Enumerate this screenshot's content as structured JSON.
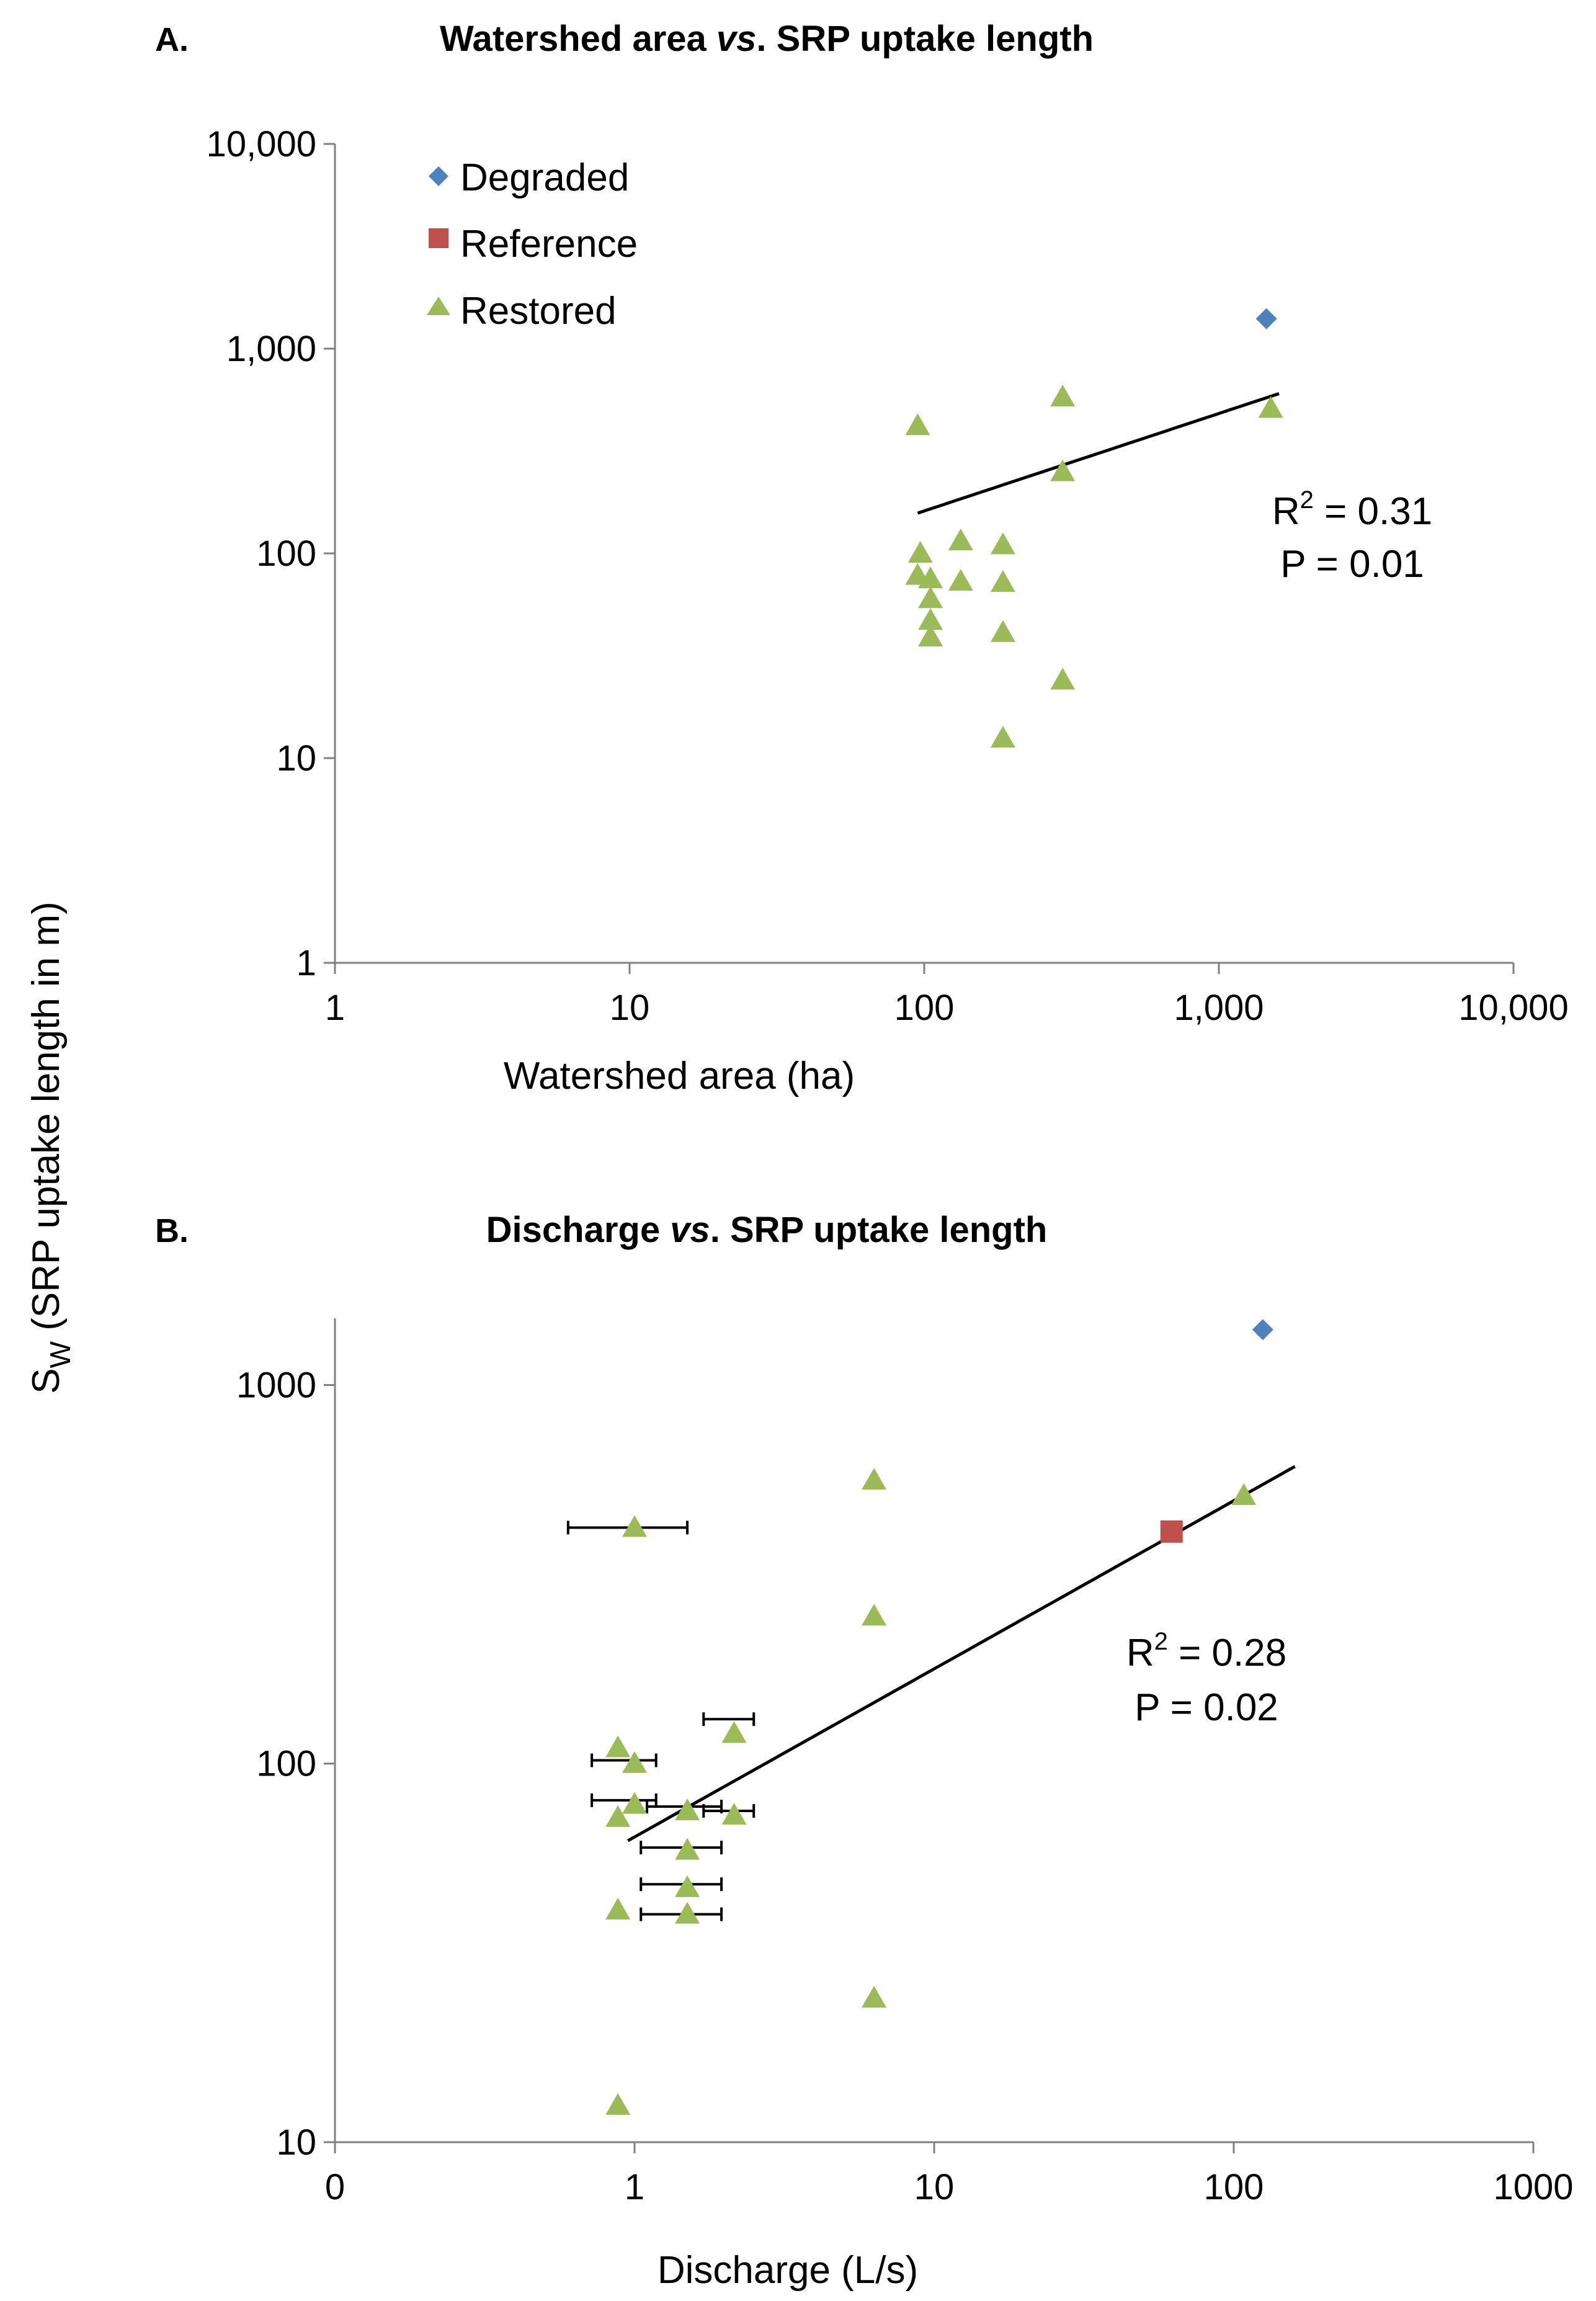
{
  "figure": {
    "y_axis_label_main": "S",
    "y_axis_label_sub": "W",
    "y_axis_label_rest": " (SRP uptake length in m)"
  },
  "legend": {
    "items": [
      {
        "name": "Degraded",
        "color": "#4F81BD",
        "marker": "diamond"
      },
      {
        "name": "Reference",
        "color": "#C0504D",
        "marker": "square"
      },
      {
        "name": "Restored",
        "color": "#9BBB59",
        "marker": "triangle"
      }
    ]
  },
  "chart_data": [
    {
      "type": "scatter",
      "panel_label": "A.",
      "title_parts": [
        "Watershed area ",
        "vs",
        ". SRP uptake length"
      ],
      "xlabel": "Watershed area (ha)",
      "xscale": "log",
      "yscale": "log",
      "xlim": [
        1,
        10000
      ],
      "ylim": [
        1,
        10000
      ],
      "x_ticks": [
        1,
        10,
        100,
        1000,
        10000
      ],
      "x_tick_labels": [
        "1",
        "10",
        "100",
        "1,000",
        "10,000"
      ],
      "y_ticks": [
        1,
        10,
        100,
        1000,
        10000
      ],
      "y_tick_labels": [
        "1",
        "10",
        "100",
        "1,000",
        "10,000"
      ],
      "stats": {
        "r2_prefix": "R",
        "r2_sup": "2",
        "r2_value": " = 0.31",
        "p": "P = 0.01"
      },
      "series": [
        {
          "name": "Degraded",
          "points": [
            [
              1450,
              1400
            ]
          ]
        },
        {
          "name": "Restored",
          "points": [
            [
              95,
              420
            ],
            [
              95,
              78
            ],
            [
              97,
              100
            ],
            [
              105,
              75
            ],
            [
              105,
              60
            ],
            [
              105,
              47
            ],
            [
              105,
              39
            ],
            [
              133,
              115
            ],
            [
              133,
              73
            ],
            [
              185,
              110
            ],
            [
              185,
              72
            ],
            [
              185,
              41
            ],
            [
              185,
              12.5
            ],
            [
              295,
              580
            ],
            [
              295,
              250
            ],
            [
              295,
              24
            ],
            [
              1500,
              510
            ]
          ]
        }
      ],
      "trendline": {
        "kind": "power",
        "x_range": [
          95,
          1600
        ],
        "a": 18.0,
        "b": 0.476
      }
    },
    {
      "type": "scatter",
      "panel_label": "B.",
      "title_parts": [
        "Discharge ",
        "vs",
        ". SRP uptake length"
      ],
      "xlabel": "Discharge (L/s)",
      "xscale": "log",
      "yscale": "log",
      "xlim": [
        0.1,
        1000
      ],
      "ylim": [
        10,
        1500
      ],
      "x_ticks": [
        0.1,
        1,
        10,
        100,
        1000
      ],
      "x_tick_labels": [
        "0",
        "1",
        "10",
        "100",
        "1000"
      ],
      "y_ticks": [
        10,
        100,
        1000
      ],
      "y_tick_labels": [
        "10",
        "100",
        "1000"
      ],
      "stats": {
        "r2_prefix": "R",
        "r2_sup": "2",
        "r2_value": " = 0.28",
        "p": "P = 0.02"
      },
      "series": [
        {
          "name": "Degraded",
          "points": [
            [
              125,
              1400
            ]
          ]
        },
        {
          "name": "Reference",
          "points": [
            [
              62,
              410
            ]
          ]
        },
        {
          "name": "Restored",
          "points": [
            [
              1.0,
              420
            ],
            [
              0.88,
              110
            ],
            [
              1.0,
              100
            ],
            [
              1.0,
              78
            ],
            [
              0.88,
              72
            ],
            [
              0.88,
              41
            ],
            [
              0.88,
              12.5
            ],
            [
              1.5,
              75
            ],
            [
              1.5,
              59
            ],
            [
              1.5,
              47
            ],
            [
              1.5,
              40
            ],
            [
              2.15,
              120
            ],
            [
              2.15,
              73
            ],
            [
              6.3,
              560
            ],
            [
              6.3,
              245
            ],
            [
              6.3,
              24
            ],
            [
              108,
              510
            ]
          ]
        }
      ],
      "error_bars": [
        {
          "y": 420,
          "x_low": 0.6,
          "x_high": 1.5
        },
        {
          "y": 102,
          "x_low": 0.72,
          "x_high": 1.18
        },
        {
          "y": 80,
          "x_low": 0.72,
          "x_high": 1.18
        },
        {
          "y": 77,
          "x_low": 1.1,
          "x_high": 1.95
        },
        {
          "y": 60,
          "x_low": 1.05,
          "x_high": 1.95
        },
        {
          "y": 48,
          "x_low": 1.05,
          "x_high": 1.95
        },
        {
          "y": 40,
          "x_low": 1.05,
          "x_high": 1.95
        },
        {
          "y": 131,
          "x_low": 1.7,
          "x_high": 2.5
        },
        {
          "y": 75,
          "x_low": 1.7,
          "x_high": 2.5
        }
      ],
      "trendline": {
        "kind": "power",
        "x_range": [
          0.95,
          160
        ],
        "a": 64.0,
        "b": 0.444
      }
    }
  ]
}
